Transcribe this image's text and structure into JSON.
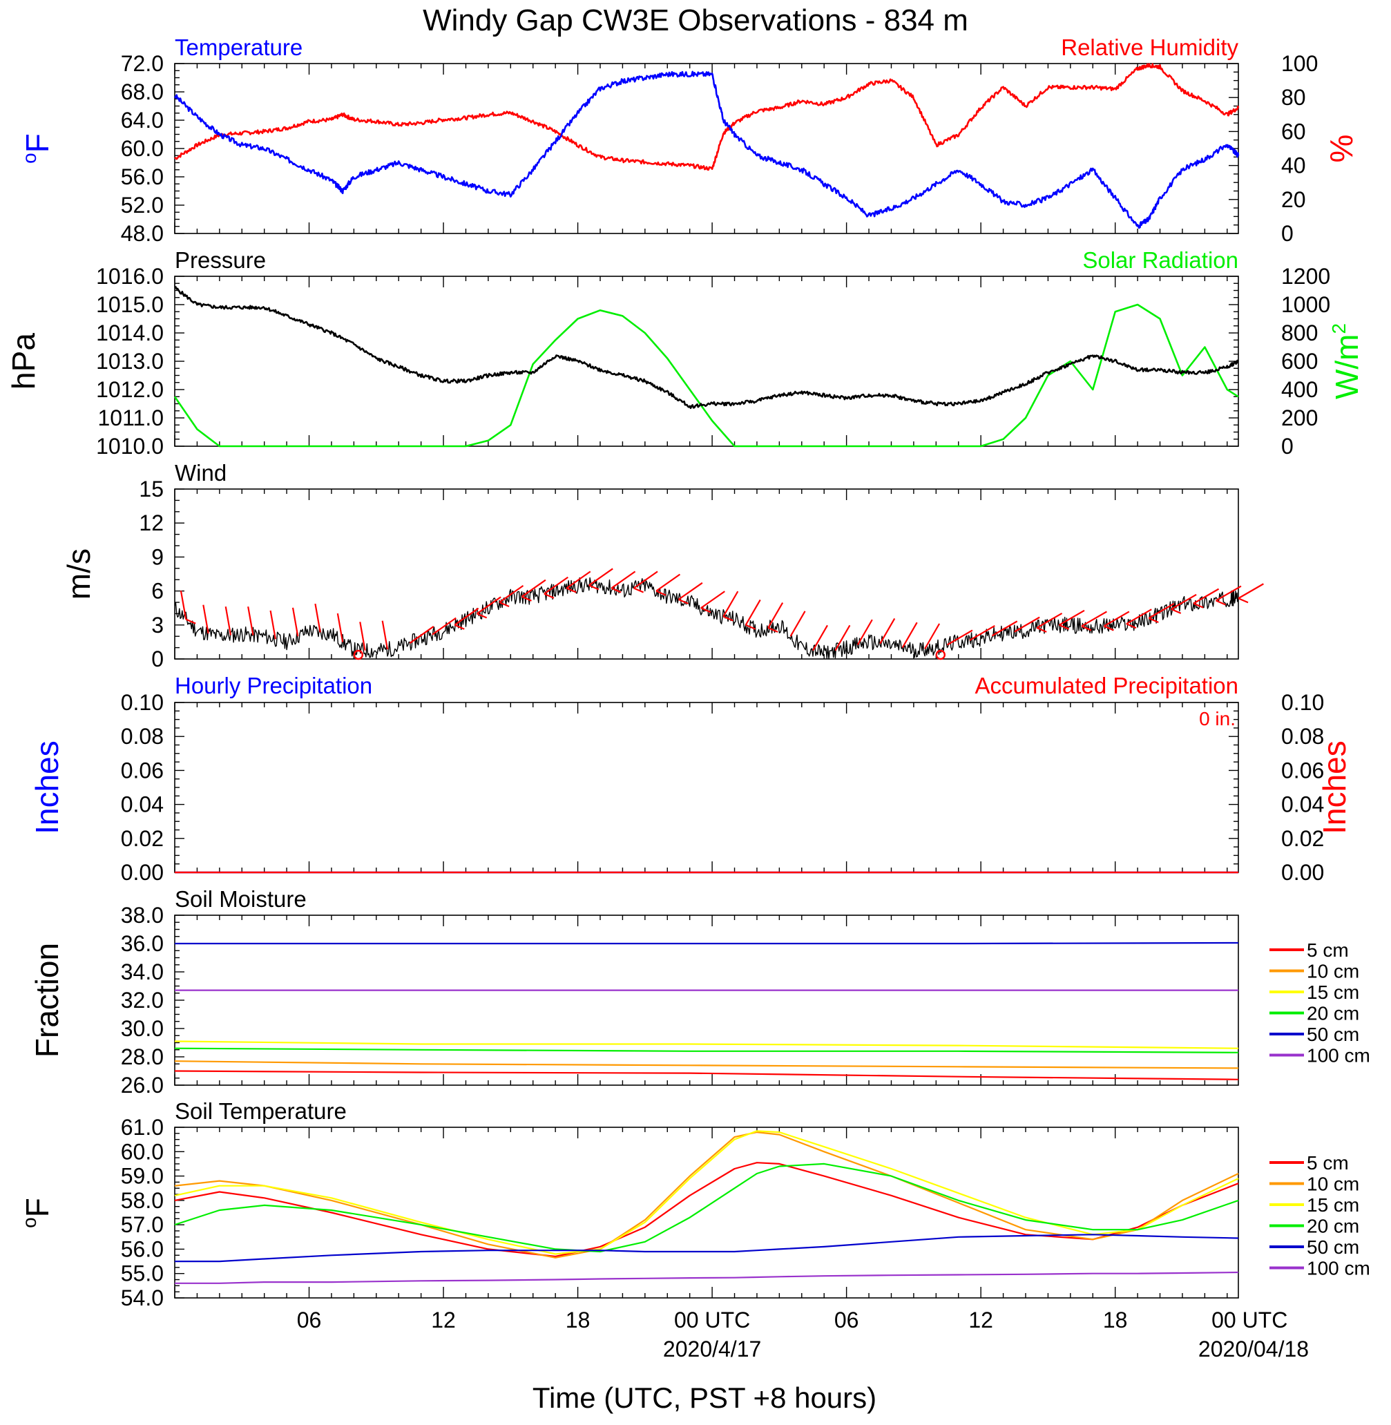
{
  "page": {
    "title": "Windy Gap CW3E Observations - 834 m",
    "xlabel": "Time (UTC, PST +8 hours)",
    "x_ticks": [
      "06",
      "12",
      "18",
      "00 UTC",
      "06",
      "12",
      "18",
      "00 UTC"
    ],
    "x_dates": [
      "2020/4/17",
      "2020/04/18"
    ]
  },
  "colors": {
    "temperature": "#0000ff",
    "humidity": "#ff0000",
    "pressure": "#000000",
    "solar": "#00ee00",
    "wind": "#000000",
    "wind_barb": "#ff0000",
    "hourly_precip": "#0000ff",
    "accum_precip": "#ff0000"
  },
  "chart_data": [
    {
      "type": "line",
      "panel": "temperature-humidity",
      "title_left": "Temperature",
      "title_right": "Relative Humidity",
      "ylabel_left": "oF",
      "ylabel_right": "%",
      "ylim_left": [
        48,
        72
      ],
      "ylim_right": [
        0,
        100
      ],
      "yticks_left": [
        "72.0",
        "68.0",
        "64.0",
        "60.0",
        "56.0",
        "52.0",
        "48.0"
      ],
      "yticks_right": [
        "100",
        "80",
        "60",
        "40",
        "20",
        "0"
      ],
      "x_hours": [
        1,
        2,
        3,
        4,
        5,
        6,
        7,
        8,
        8.5,
        9,
        10,
        11,
        12,
        13,
        14,
        15,
        16,
        17,
        18,
        19,
        20,
        21,
        22,
        23,
        24,
        25,
        25.5,
        26,
        27,
        28,
        29,
        30,
        31,
        32,
        33,
        34,
        35,
        36,
        37,
        38,
        39,
        40,
        41,
        42,
        43,
        44,
        44.5,
        45,
        46,
        47,
        48,
        48.5
      ],
      "series": [
        {
          "name": "Temperature",
          "axis": "left",
          "values": [
            67.5,
            64.5,
            62,
            60.5,
            60,
            58.5,
            57,
            55.5,
            54,
            56,
            57,
            58,
            57,
            56,
            55,
            54,
            53.5,
            57,
            61,
            65,
            68.5,
            69.5,
            70,
            70.5,
            70.5,
            70.5,
            64,
            62,
            59,
            58,
            57,
            55,
            53,
            50.5,
            51.5,
            53,
            55,
            57,
            55,
            52.5,
            52,
            53,
            55,
            57,
            53,
            49,
            50,
            53,
            57,
            58.5,
            60.5,
            59
          ]
        },
        {
          "name": "Relative Humidity",
          "axis": "right",
          "values": [
            44,
            52,
            58,
            59,
            60,
            62,
            66,
            67,
            70,
            67,
            66,
            64,
            65,
            67,
            68,
            70,
            71,
            66,
            60,
            52,
            45,
            43,
            42,
            41,
            40,
            38,
            59,
            65,
            72,
            74,
            78,
            76,
            80,
            88,
            90,
            80,
            52,
            58,
            74,
            86,
            75,
            86,
            86,
            86,
            85,
            97,
            99,
            98,
            84,
            78,
            70,
            74
          ]
        }
      ]
    },
    {
      "type": "line",
      "panel": "pressure-solar",
      "title_left": "Pressure",
      "title_right": "Solar Radiation",
      "ylabel_left": "hPa",
      "ylabel_right": "W/m2",
      "ylim_left": [
        1010,
        1016
      ],
      "ylim_right": [
        0,
        1200
      ],
      "yticks_left": [
        "1016.0",
        "1015.0",
        "1014.0",
        "1013.0",
        "1012.0",
        "1011.0",
        "1010.0"
      ],
      "yticks_right": [
        "1200",
        "1000",
        "800",
        "600",
        "400",
        "200",
        "0"
      ],
      "x_hours": [
        1,
        2,
        3,
        4,
        5,
        6,
        7,
        8,
        9,
        10,
        11,
        12,
        13,
        14,
        15,
        16,
        17,
        18,
        19,
        20,
        21,
        22,
        23,
        24,
        25,
        26,
        27,
        28,
        29,
        30,
        31,
        32,
        33,
        34,
        35,
        36,
        37,
        38,
        39,
        40,
        41,
        42,
        43,
        44,
        45,
        46,
        47,
        48,
        48.5
      ],
      "series": [
        {
          "name": "Pressure",
          "axis": "left",
          "values": [
            1015.6,
            1015.0,
            1014.9,
            1014.9,
            1014.9,
            1014.6,
            1014.3,
            1014.0,
            1013.6,
            1013.1,
            1012.8,
            1012.5,
            1012.3,
            1012.3,
            1012.5,
            1012.6,
            1012.6,
            1013.2,
            1013.0,
            1012.7,
            1012.5,
            1012.3,
            1011.9,
            1011.4,
            1011.5,
            1011.5,
            1011.6,
            1011.8,
            1011.9,
            1011.8,
            1011.7,
            1011.8,
            1011.8,
            1011.6,
            1011.5,
            1011.5,
            1011.6,
            1011.9,
            1012.2,
            1012.6,
            1012.9,
            1013.2,
            1013.0,
            1012.7,
            1012.7,
            1012.6,
            1012.6,
            1012.8,
            1013.0
          ]
        },
        {
          "name": "Solar Radiation",
          "axis": "right",
          "values": [
            350,
            120,
            0,
            0,
            0,
            0,
            0,
            0,
            0,
            0,
            0,
            0,
            0,
            0,
            40,
            150,
            580,
            750,
            900,
            960,
            920,
            800,
            620,
            400,
            180,
            0,
            0,
            0,
            0,
            0,
            0,
            0,
            0,
            0,
            0,
            0,
            0,
            50,
            200,
            500,
            600,
            400,
            950,
            1000,
            900,
            500,
            700,
            400,
            350
          ]
        }
      ]
    },
    {
      "type": "line",
      "panel": "wind",
      "title_left": "Wind",
      "ylabel_left": "m/s",
      "ylim_left": [
        0,
        15
      ],
      "yticks_left": [
        "15",
        "12",
        "9",
        "6",
        "3",
        "0"
      ],
      "x_hours": [
        1,
        2,
        3,
        4,
        5,
        6,
        7,
        8,
        9,
        10,
        11,
        12,
        13,
        14,
        15,
        16,
        17,
        18,
        19,
        20,
        21,
        22,
        23,
        24,
        25,
        26,
        27,
        28,
        29,
        30,
        31,
        32,
        33,
        34,
        35,
        36,
        37,
        38,
        39,
        40,
        41,
        42,
        43,
        44,
        45,
        46,
        47,
        48,
        48.5
      ],
      "series": [
        {
          "name": "Wind speed",
          "values": [
            4.5,
            2.5,
            2.0,
            2.2,
            2.0,
            1.5,
            2.5,
            2.2,
            0.8,
            0.7,
            1.0,
            1.8,
            2.5,
            3.5,
            4.5,
            5.5,
            5.5,
            6.0,
            6.5,
            6.5,
            6.0,
            6.5,
            5.5,
            5.0,
            4.0,
            3.5,
            2.5,
            3.0,
            1.0,
            0.5,
            1.0,
            1.5,
            1.2,
            0.8,
            1.0,
            1.5,
            1.8,
            2.3,
            2.5,
            3.0,
            3.0,
            2.8,
            3.0,
            3.2,
            4.0,
            4.8,
            5.0,
            5.3,
            5.4
          ]
        }
      ]
    },
    {
      "type": "line",
      "panel": "precipitation",
      "title_left": "Hourly Precipitation",
      "title_right": "Accumulated Precipitation",
      "annotation": "0 in.",
      "ylabel_left": "Inches",
      "ylabel_right": "Inches",
      "ylim_left": [
        0,
        0.1
      ],
      "ylim_right": [
        0,
        0.1
      ],
      "yticks_left": [
        "0.10",
        "0.08",
        "0.06",
        "0.04",
        "0.02",
        "0.00"
      ],
      "yticks_right": [
        "0.10",
        "0.08",
        "0.06",
        "0.04",
        "0.02",
        "0.00"
      ],
      "x_hours": [
        1,
        48.5
      ],
      "series": [
        {
          "name": "Hourly Precipitation",
          "values": [
            0,
            0
          ]
        },
        {
          "name": "Accumulated Precipitation",
          "values": [
            0,
            0
          ]
        }
      ]
    },
    {
      "type": "line",
      "panel": "soil-moisture",
      "title_left": "Soil Moisture",
      "ylabel_left": "Fraction",
      "ylim_left": [
        26,
        38
      ],
      "yticks_left": [
        "38.0",
        "36.0",
        "34.0",
        "32.0",
        "30.0",
        "28.0",
        "26.0"
      ],
      "x_hours": [
        1,
        12,
        24,
        36,
        48.5
      ],
      "series": [
        {
          "name": "5 cm",
          "color": "#ff0000",
          "values": [
            27.0,
            26.9,
            26.85,
            26.6,
            26.4
          ]
        },
        {
          "name": "10 cm",
          "color": "#ff9900",
          "values": [
            27.7,
            27.5,
            27.4,
            27.3,
            27.2
          ]
        },
        {
          "name": "15 cm",
          "color": "#ffff00",
          "values": [
            29.1,
            28.9,
            28.9,
            28.8,
            28.6
          ]
        },
        {
          "name": "20 cm",
          "color": "#00ee00",
          "values": [
            28.6,
            28.5,
            28.4,
            28.4,
            28.3
          ]
        },
        {
          "name": "50 cm",
          "color": "#0000cc",
          "values": [
            36.0,
            36.0,
            36.0,
            36.0,
            36.05
          ]
        },
        {
          "name": "100 cm",
          "color": "#9932cc",
          "values": [
            32.7,
            32.7,
            32.7,
            32.7,
            32.7
          ]
        }
      ]
    },
    {
      "type": "line",
      "panel": "soil-temperature",
      "title_left": "Soil Temperature",
      "ylabel_left": "oF",
      "ylim_left": [
        54,
        61
      ],
      "yticks_left": [
        "61.0",
        "60.0",
        "59.0",
        "58.0",
        "57.0",
        "56.0",
        "55.0",
        "54.0"
      ],
      "x_hours": [
        1,
        3,
        5,
        8,
        12,
        15,
        18,
        20,
        22,
        24,
        26,
        27,
        28,
        30,
        33,
        36,
        39,
        42,
        44,
        46,
        48.5
      ],
      "series": [
        {
          "name": "5 cm",
          "color": "#ff0000",
          "values": [
            58.0,
            58.35,
            58.1,
            57.5,
            56.6,
            56.0,
            55.7,
            56.1,
            56.9,
            58.2,
            59.3,
            59.55,
            59.5,
            59.0,
            58.2,
            57.3,
            56.6,
            56.4,
            56.9,
            57.8,
            58.7
          ]
        },
        {
          "name": "10 cm",
          "color": "#ff9900",
          "values": [
            58.6,
            58.8,
            58.6,
            58.0,
            57.0,
            56.2,
            55.65,
            56.0,
            57.2,
            59.0,
            60.6,
            60.8,
            60.7,
            60.0,
            59.0,
            57.9,
            56.8,
            56.4,
            56.8,
            58.0,
            59.1
          ]
        },
        {
          "name": "15 cm",
          "color": "#ffff00",
          "values": [
            58.2,
            58.6,
            58.6,
            58.1,
            57.1,
            56.4,
            55.8,
            56.0,
            57.1,
            58.9,
            60.5,
            60.85,
            60.8,
            60.2,
            59.3,
            58.3,
            57.3,
            56.6,
            56.8,
            57.8,
            58.9
          ]
        },
        {
          "name": "20 cm",
          "color": "#00ee00",
          "values": [
            57.0,
            57.6,
            57.8,
            57.6,
            57.0,
            56.5,
            56.0,
            55.9,
            56.3,
            57.3,
            58.5,
            59.1,
            59.4,
            59.5,
            59.0,
            58.0,
            57.2,
            56.8,
            56.8,
            57.2,
            58.0
          ]
        },
        {
          "name": "50 cm",
          "color": "#0000cc",
          "values": [
            55.5,
            55.5,
            55.6,
            55.75,
            55.9,
            55.95,
            55.95,
            55.95,
            55.9,
            55.9,
            55.9,
            55.95,
            56.0,
            56.1,
            56.3,
            56.5,
            56.55,
            56.6,
            56.55,
            56.5,
            56.45
          ]
        },
        {
          "name": "100 cm",
          "color": "#9932cc",
          "values": [
            54.6,
            54.6,
            54.65,
            54.65,
            54.7,
            54.72,
            54.75,
            54.78,
            54.8,
            54.82,
            54.83,
            54.85,
            54.87,
            54.9,
            54.93,
            54.95,
            54.97,
            55.0,
            55.0,
            55.02,
            55.05
          ]
        }
      ]
    }
  ],
  "legend": {
    "soil_moisture": [
      "5 cm",
      "10 cm",
      "15 cm",
      "20 cm",
      "50 cm",
      "100 cm"
    ],
    "soil_temperature": [
      "5 cm",
      "10 cm",
      "15 cm",
      "20 cm",
      "50 cm",
      "100 cm"
    ]
  }
}
